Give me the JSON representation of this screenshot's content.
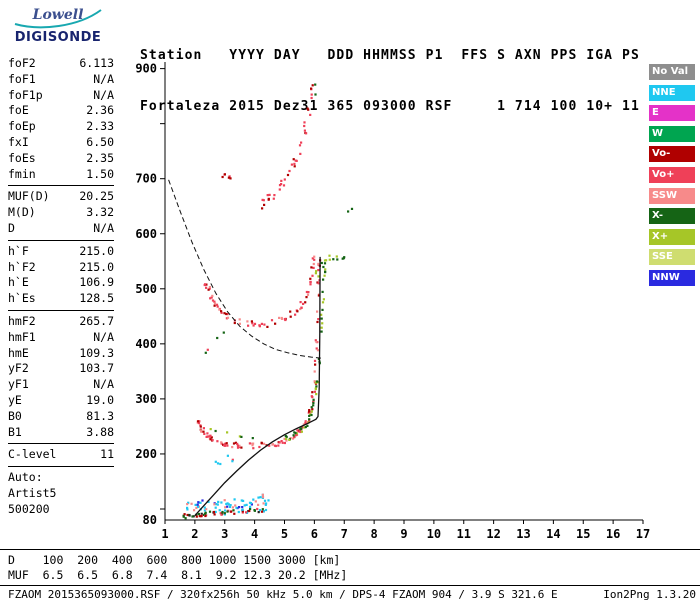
{
  "logo": {
    "top": "Lowell",
    "bottom": "DIGISONDE"
  },
  "header": {
    "line1": "Station   YYYY DAY   DDD HHMMSS P1  FFS S AXN PPS IGA PS",
    "line2": "Fortaleza 2015 Dez31 365 093000 RSF     1 714 100 10+ 11"
  },
  "params": {
    "groups": [
      {
        "separator": true,
        "rows": [
          {
            "label": "foF2",
            "value": "6.113"
          },
          {
            "label": "foF1",
            "value": "N/A"
          },
          {
            "label": "foF1p",
            "value": "N/A"
          },
          {
            "label": "foE",
            "value": "2.36"
          },
          {
            "label": "foEp",
            "value": "2.33"
          },
          {
            "label": "fxI",
            "value": "6.50"
          },
          {
            "label": "foEs",
            "value": "2.35"
          },
          {
            "label": "fmin",
            "value": "1.50"
          }
        ]
      },
      {
        "separator": true,
        "rows": [
          {
            "label": "MUF(D)",
            "value": "20.25"
          },
          {
            "label": "M(D)",
            "value": "3.32"
          },
          {
            "label": "D",
            "value": "N/A"
          }
        ]
      },
      {
        "separator": true,
        "rows": [
          {
            "label": "h`F",
            "value": "215.0"
          },
          {
            "label": "h`F2",
            "value": "215.0"
          },
          {
            "label": "h`E",
            "value": "106.9"
          },
          {
            "label": "h`Es",
            "value": "128.5"
          }
        ]
      },
      {
        "separator": true,
        "rows": [
          {
            "label": "hmF2",
            "value": "265.7"
          },
          {
            "label": "hmF1",
            "value": "N/A"
          },
          {
            "label": "hmE",
            "value": "109.3"
          },
          {
            "label": "yF2",
            "value": "103.7"
          },
          {
            "label": "yF1",
            "value": "N/A"
          },
          {
            "label": "yE",
            "value": "19.0"
          },
          {
            "label": "B0",
            "value": "81.3"
          },
          {
            "label": "B1",
            "value": "3.88"
          }
        ]
      },
      {
        "separator": true,
        "rows": [
          {
            "label": "C-level",
            "value": "11"
          }
        ]
      },
      {
        "separator": false,
        "rows": [
          {
            "label": "Auto:",
            "value": ""
          },
          {
            "label": "Artist5",
            "value": ""
          },
          {
            "label": "500200",
            "value": ""
          }
        ]
      }
    ]
  },
  "legend": {
    "items": [
      {
        "label": "No Val",
        "color": "#8e8e8e"
      },
      {
        "label": "NNE",
        "color": "#1fc8f0"
      },
      {
        "label": "E",
        "color": "#e432c8"
      },
      {
        "label": "W",
        "color": "#00a550"
      },
      {
        "label": "Vo-",
        "color": "#b00000"
      },
      {
        "label": "Vo+",
        "color": "#ef4058"
      },
      {
        "label": "SSW",
        "color": "#f78a8a"
      },
      {
        "label": "X-",
        "color": "#156415"
      },
      {
        "label": "X+",
        "color": "#a6c627"
      },
      {
        "label": "SSE",
        "color": "#cfdd70"
      },
      {
        "label": "NNW",
        "color": "#2a2ae0"
      }
    ]
  },
  "footer": {
    "d_row": "D    100  200  400  600  800 1000 1500 3000 [km]",
    "muf_row": "MUF  6.5  6.5  6.8  7.4  8.1  9.2 12.3 20.2 [MHz]",
    "status_left": "FZAOM_2015365093000.RSF / 320fx256h 50 kHz 5.0 km / DPS-4 FZAOM 904 / 3.9 S 321.6 E",
    "status_right": "Ion2Png 1.3.20"
  },
  "chart_data": {
    "type": "scatter",
    "title": "Digisonde ionogram Fortaleza 2015 Dez31 093000",
    "x_unit": "MHz",
    "y_unit": "km",
    "x_range": [
      1,
      17
    ],
    "y_range_km": [
      80,
      912
    ],
    "x_ticks": [
      1,
      2,
      3,
      4,
      5,
      6,
      7,
      8,
      9,
      10,
      11,
      12,
      13,
      14,
      15,
      16,
      17
    ],
    "y_tick_marks": [
      100,
      200,
      300,
      400,
      500,
      600,
      700,
      800,
      900
    ],
    "y_tick_labels": [
      900,
      700,
      600,
      500,
      400,
      300,
      200,
      80
    ],
    "traces": [
      {
        "name": "es-layer-lower",
        "colors": [
          "#ef4058",
          "#b00000",
          "#156415",
          "#222222",
          "#1fc8f0"
        ],
        "density": 10,
        "jitter": [
          0.1,
          4
        ],
        "points": [
          [
            1.6,
            87
          ],
          [
            2.0,
            89
          ],
          [
            2.4,
            91
          ],
          [
            2.9,
            93
          ],
          [
            3.4,
            95
          ],
          [
            3.9,
            97
          ],
          [
            4.4,
            99
          ]
        ]
      },
      {
        "name": "es-layer-upper",
        "colors": [
          "#1fc8f0",
          "#1fc8f0",
          "#1fc8f0",
          "#2a2ae0",
          "#f78a8a"
        ],
        "density": 11,
        "jitter": [
          0.12,
          10
        ],
        "points": [
          [
            1.7,
            103
          ],
          [
            2.1,
            105
          ],
          [
            2.6,
            107
          ],
          [
            3.1,
            109
          ],
          [
            3.6,
            112
          ],
          [
            4.1,
            115
          ],
          [
            4.5,
            118
          ]
        ]
      },
      {
        "name": "es-second-hop",
        "colors": [
          "#1fc8f0",
          "#ef4058"
        ],
        "density": 3,
        "jitter": [
          0.1,
          8
        ],
        "points": [
          [
            2.6,
            182
          ],
          [
            3.0,
            188
          ],
          [
            3.4,
            196
          ]
        ]
      },
      {
        "name": "f-trace-o-mode",
        "colors": [
          "#ef4058",
          "#ef4058",
          "#b00000",
          "#f78a8a"
        ],
        "density": 6,
        "jitter": [
          0.05,
          5
        ],
        "points": [
          [
            2.1,
            262
          ],
          [
            2.2,
            248
          ],
          [
            2.35,
            238
          ],
          [
            2.5,
            229
          ],
          [
            2.7,
            223
          ],
          [
            3.0,
            218
          ],
          [
            3.4,
            215
          ],
          [
            3.8,
            214
          ],
          [
            4.2,
            215
          ],
          [
            4.6,
            218
          ],
          [
            4.9,
            222
          ],
          [
            5.2,
            229
          ],
          [
            5.45,
            238
          ],
          [
            5.65,
            250
          ],
          [
            5.8,
            265
          ],
          [
            5.92,
            288
          ],
          [
            6.0,
            320
          ],
          [
            6.07,
            370
          ],
          [
            6.11,
            440
          ],
          [
            6.14,
            510
          ],
          [
            6.16,
            556
          ]
        ]
      },
      {
        "name": "f-trace-x-mode",
        "colors": [
          "#156415",
          "#a6c627",
          "#156415"
        ],
        "density": 5,
        "jitter": [
          0.05,
          6
        ],
        "points": [
          [
            5.0,
            225
          ],
          [
            5.3,
            232
          ],
          [
            5.55,
            242
          ],
          [
            5.75,
            256
          ],
          [
            5.9,
            272
          ],
          [
            6.0,
            295
          ],
          [
            6.1,
            330
          ],
          [
            6.2,
            380
          ],
          [
            6.28,
            450
          ],
          [
            6.33,
            520
          ],
          [
            6.36,
            556
          ]
        ]
      },
      {
        "name": "f-trace-x-low",
        "colors": [
          "#156415",
          "#a6c627"
        ],
        "density": 2,
        "jitter": [
          0.08,
          5
        ],
        "points": [
          [
            2.5,
            246
          ],
          [
            3.0,
            239
          ],
          [
            3.5,
            235
          ],
          [
            4.0,
            233
          ]
        ]
      },
      {
        "name": "second-hop-o-mode",
        "colors": [
          "#ef4058",
          "#ef4058",
          "#b00000",
          "#f78a8a"
        ],
        "density": 5,
        "jitter": [
          0.06,
          6
        ],
        "points": [
          [
            2.35,
            515
          ],
          [
            2.45,
            498
          ],
          [
            2.6,
            478
          ],
          [
            2.8,
            462
          ],
          [
            3.0,
            452
          ],
          [
            3.3,
            443
          ],
          [
            3.7,
            437
          ],
          [
            4.1,
            434
          ],
          [
            4.5,
            437
          ],
          [
            4.9,
            443
          ],
          [
            5.2,
            452
          ],
          [
            5.5,
            466
          ],
          [
            5.7,
            482
          ],
          [
            5.85,
            505
          ],
          [
            5.95,
            535
          ],
          [
            6.0,
            556
          ]
        ]
      },
      {
        "name": "second-hop-x-mode",
        "colors": [
          "#156415",
          "#a6c627"
        ],
        "density": 3,
        "jitter": [
          0.07,
          5
        ],
        "points": [
          [
            6.05,
            520
          ],
          [
            6.2,
            540
          ],
          [
            6.35,
            554
          ],
          [
            6.6,
            558
          ],
          [
            6.9,
            552
          ],
          [
            7.15,
            556
          ]
        ]
      },
      {
        "name": "third-hop-o-mode",
        "colors": [
          "#ef4058",
          "#b00000",
          "#ef4058"
        ],
        "density": 5,
        "jitter": [
          0.07,
          9
        ],
        "points": [
          [
            4.15,
            650
          ],
          [
            4.45,
            662
          ],
          [
            4.75,
            678
          ],
          [
            5.05,
            698
          ],
          [
            5.3,
            722
          ],
          [
            5.55,
            756
          ],
          [
            5.72,
            795
          ],
          [
            5.85,
            838
          ],
          [
            5.95,
            875
          ]
        ]
      },
      {
        "name": "third-hop-leading",
        "colors": [
          "#ef4058",
          "#b00000"
        ],
        "density": 3,
        "jitter": [
          0.06,
          7
        ],
        "points": [
          [
            2.9,
            710
          ],
          [
            3.1,
            700
          ],
          [
            3.3,
            692
          ]
        ]
      },
      {
        "name": "third-hop-x-mode",
        "colors": [
          "#156415",
          "#a6c627"
        ],
        "density": 2,
        "jitter": [
          0.06,
          8
        ],
        "points": [
          [
            6.0,
            850
          ],
          [
            6.1,
            872
          ]
        ]
      },
      {
        "name": "stray-echoes",
        "colors": [
          "#156415",
          "#ef4058"
        ],
        "density": 2,
        "jitter": [
          0.06,
          6
        ],
        "points": [
          [
            7.0,
            642
          ],
          [
            7.3,
            648
          ],
          [
            2.35,
            390
          ],
          [
            2.5,
            382
          ]
        ]
      }
    ],
    "profile_line": {
      "color": "#111111",
      "points": [
        [
          2.0,
          88
        ],
        [
          2.3,
          106
        ],
        [
          2.6,
          124
        ],
        [
          3.0,
          148
        ],
        [
          3.4,
          169
        ],
        [
          3.8,
          189
        ],
        [
          4.2,
          207
        ],
        [
          4.6,
          222
        ],
        [
          5.0,
          235
        ],
        [
          5.4,
          246
        ],
        [
          5.8,
          256
        ],
        [
          6.05,
          263
        ],
        [
          6.12,
          268
        ],
        [
          6.16,
          320
        ],
        [
          6.18,
          420
        ],
        [
          6.19,
          558
        ]
      ]
    },
    "muf_curve": {
      "color": "#111111",
      "dash": "5,3",
      "points": [
        [
          1.12,
          698
        ],
        [
          1.5,
          642
        ],
        [
          1.9,
          585
        ],
        [
          2.3,
          535
        ],
        [
          2.7,
          492
        ],
        [
          3.1,
          458
        ],
        [
          3.5,
          432
        ],
        [
          3.9,
          414
        ],
        [
          4.3,
          400
        ],
        [
          4.7,
          390
        ],
        [
          5.1,
          384
        ],
        [
          5.5,
          379
        ],
        [
          5.9,
          376
        ],
        [
          6.25,
          374
        ]
      ]
    }
  }
}
